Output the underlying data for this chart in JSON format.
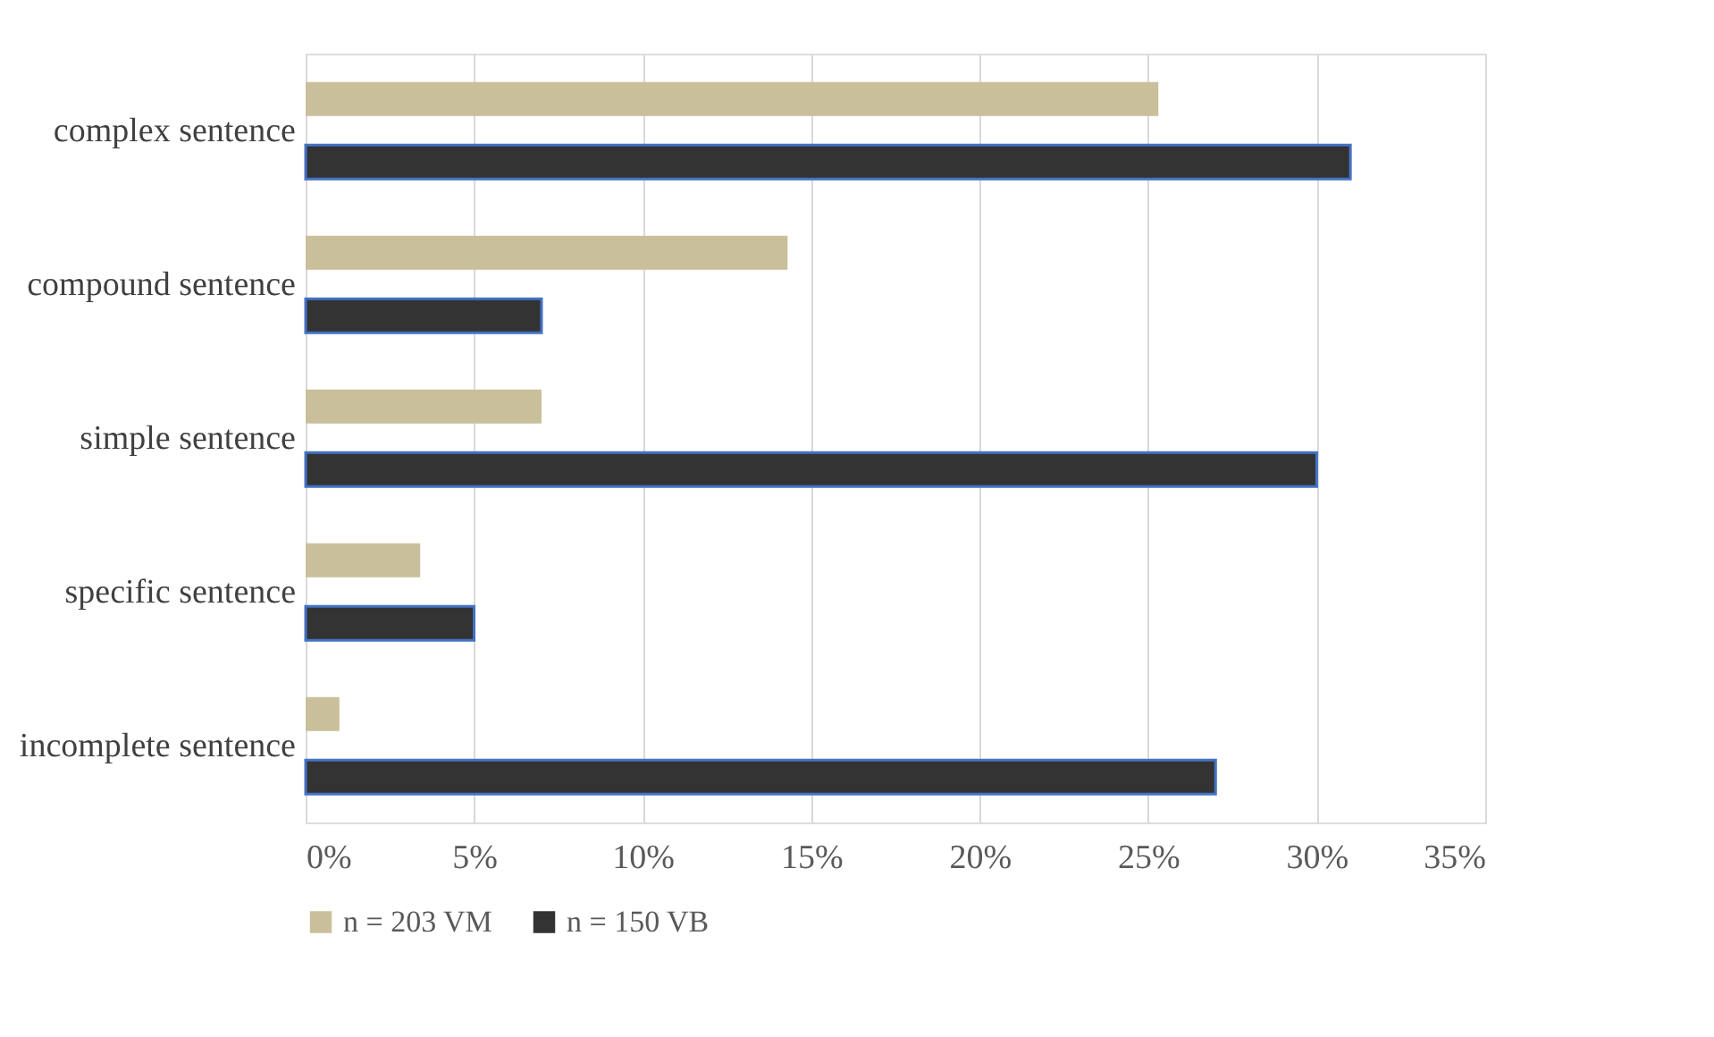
{
  "chart_data": {
    "type": "bar",
    "orientation": "horizontal",
    "categories": [
      "complex sentence",
      "compound sentence",
      "simple sentence",
      "specific sentence",
      "incomplete sentence"
    ],
    "series": [
      {
        "name": "n = 203 VM",
        "color": "#c9bf9b",
        "values": [
          25.3,
          14.3,
          7,
          3.4,
          1
        ]
      },
      {
        "name": "n = 150 VB",
        "color": "#333333",
        "values": [
          31,
          7,
          30,
          5,
          27
        ]
      }
    ],
    "xlim": [
      0,
      35
    ],
    "xticks": [
      {
        "value": 0,
        "label": "0%"
      },
      {
        "value": 5,
        "label": "5%"
      },
      {
        "value": 10,
        "label": "10%"
      },
      {
        "value": 15,
        "label": "15%"
      },
      {
        "value": 20,
        "label": "20%"
      },
      {
        "value": 25,
        "label": "25%"
      },
      {
        "value": 30,
        "label": "30%"
      },
      {
        "value": 35,
        "label": "35%"
      }
    ],
    "grid": "x",
    "legend": "bottom"
  }
}
